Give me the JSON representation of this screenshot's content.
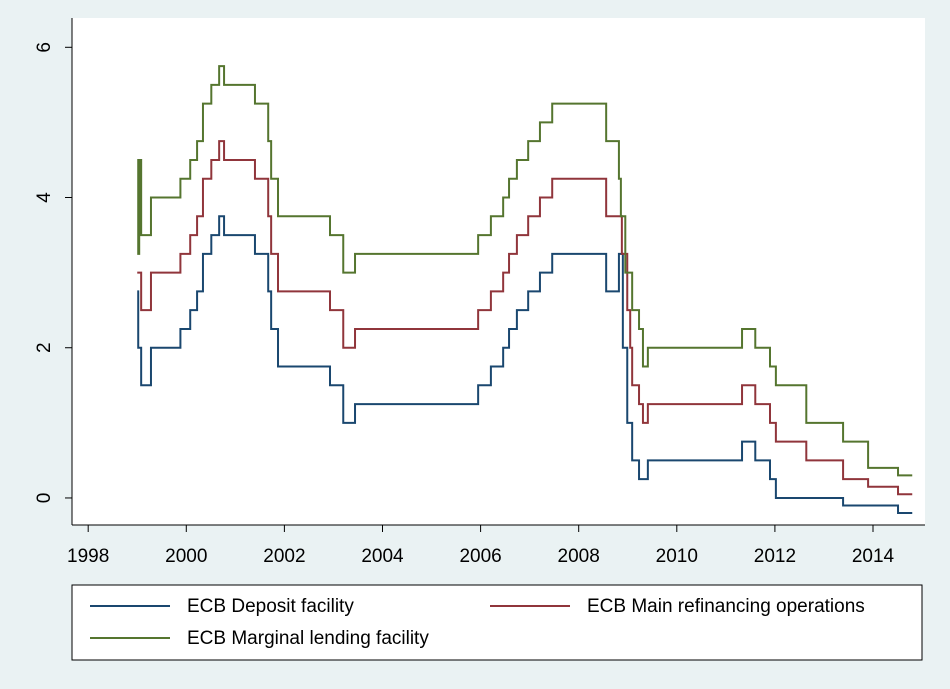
{
  "chart_data": {
    "type": "line",
    "step": true,
    "xlim": [
      1997.67,
      2015.06
    ],
    "xticks": [
      1998,
      2000,
      2002,
      2004,
      2006,
      2008,
      2010,
      2012,
      2014
    ],
    "ylim": [
      -0.36,
      6.39
    ],
    "yticks": [
      0,
      2,
      4,
      6
    ],
    "grid": false,
    "legend": "bottom",
    "series": [
      {
        "name": "ECB Deposit facility",
        "color": "#1a476f",
        "x": [
          1999.0,
          1999.02,
          1999.08,
          1999.28,
          1999.88,
          2000.08,
          2000.22,
          2000.34,
          2000.51,
          2000.67,
          2000.77,
          2001.4,
          2001.67,
          2001.73,
          2001.87,
          2002.93,
          2003.2,
          2003.44,
          2005.95,
          2006.21,
          2006.46,
          2006.58,
          2006.74,
          2006.97,
          2007.21,
          2007.46,
          2008.56,
          2008.82,
          2008.9,
          2008.99,
          2009.09,
          2009.23,
          2009.41,
          2011.33,
          2011.6,
          2011.9,
          2012.02,
          2013.39,
          2014.51,
          2014.8
        ],
        "values": [
          2.75,
          2.0,
          1.5,
          2.0,
          2.25,
          2.5,
          2.75,
          3.25,
          3.5,
          3.75,
          3.5,
          3.25,
          2.75,
          2.25,
          1.75,
          1.5,
          1.0,
          1.25,
          1.5,
          1.75,
          2.0,
          2.25,
          2.5,
          2.75,
          3.0,
          3.25,
          2.75,
          3.25,
          2.0,
          1.0,
          0.5,
          0.25,
          0.5,
          0.75,
          0.5,
          0.25,
          0,
          -0.1,
          -0.2,
          -0.2
        ]
      },
      {
        "name": "ECB Main refinancing operations",
        "color": "#90353b",
        "x": [
          1999.0,
          1999.08,
          1999.28,
          1999.88,
          2000.08,
          2000.22,
          2000.34,
          2000.51,
          2000.67,
          2000.77,
          2001.4,
          2001.67,
          2001.73,
          2001.87,
          2002.93,
          2003.2,
          2003.44,
          2005.95,
          2006.21,
          2006.46,
          2006.58,
          2006.74,
          2006.97,
          2007.21,
          2007.46,
          2008.56,
          2008.88,
          2008.99,
          2009.05,
          2009.09,
          2009.23,
          2009.31,
          2009.41,
          2011.33,
          2011.6,
          2011.9,
          2012.02,
          2012.64,
          2013.39,
          2013.9,
          2014.51,
          2014.8
        ],
        "values": [
          3.0,
          2.5,
          3.0,
          3.25,
          3.5,
          3.75,
          4.25,
          4.5,
          4.75,
          4.5,
          4.25,
          3.75,
          3.25,
          2.75,
          2.5,
          2.0,
          2.25,
          2.5,
          2.75,
          3.0,
          3.25,
          3.5,
          3.75,
          4.0,
          4.25,
          3.75,
          3.25,
          2.5,
          2.0,
          1.5,
          1.25,
          1.0,
          1.25,
          1.5,
          1.25,
          1.0,
          0.75,
          0.5,
          0.25,
          0.15,
          0.05,
          0.05
        ]
      },
      {
        "name": "ECB Marginal lending facility",
        "color": "#55752f",
        "x": [
          1999.0,
          1999.02,
          1999.04,
          1999.08,
          1999.28,
          1999.88,
          2000.08,
          2000.22,
          2000.34,
          2000.51,
          2000.67,
          2000.77,
          2001.4,
          2001.67,
          2001.73,
          2001.87,
          2002.93,
          2003.2,
          2003.44,
          2005.95,
          2006.21,
          2006.46,
          2006.58,
          2006.74,
          2006.97,
          2007.21,
          2007.46,
          2008.56,
          2008.82,
          2008.86,
          2008.95,
          2009.09,
          2009.23,
          2009.31,
          2009.41,
          2011.33,
          2011.6,
          2011.9,
          2012.02,
          2012.64,
          2013.39,
          2013.9,
          2014.51,
          2014.8
        ],
        "values": [
          4.5,
          3.25,
          4.5,
          3.5,
          4.0,
          4.25,
          4.5,
          4.75,
          5.25,
          5.5,
          5.75,
          5.5,
          5.25,
          4.75,
          4.25,
          3.75,
          3.5,
          3.0,
          3.25,
          3.5,
          3.75,
          4.0,
          4.25,
          4.5,
          4.75,
          5.0,
          5.25,
          4.75,
          4.25,
          3.75,
          3.0,
          2.5,
          2.25,
          1.75,
          2.0,
          2.25,
          2.0,
          1.75,
          1.5,
          1.0,
          0.75,
          0.4,
          0.3,
          0.3
        ]
      }
    ]
  }
}
